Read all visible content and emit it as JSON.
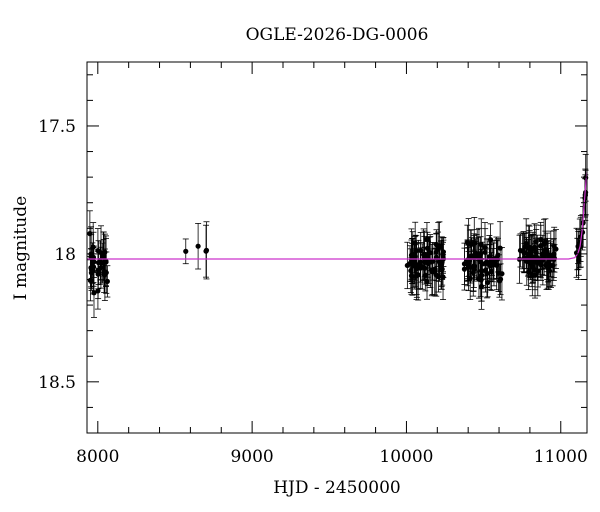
{
  "chart_data": {
    "type": "scatter",
    "title": "OGLE-2026-DG-0006",
    "xlabel": "HJD - 2450000",
    "ylabel": "I magnitude",
    "xlim": [
      7930,
      11170
    ],
    "ylim": [
      18.7,
      17.25
    ],
    "y_inverted": true,
    "x_ticks": [
      {
        "value": 8000,
        "label": "8000"
      },
      {
        "value": 9000,
        "label": "9000"
      },
      {
        "value": 10000,
        "label": "10000"
      },
      {
        "value": 11000,
        "label": "11000"
      }
    ],
    "y_ticks": [
      {
        "value": 17.5,
        "label": "17.5"
      },
      {
        "value": 18.0,
        "label": "18"
      },
      {
        "value": 18.5,
        "label": "18.5"
      }
    ],
    "x_minor_step": 200,
    "y_minor_step": 0.1,
    "grid": false,
    "legend": "none",
    "colors": {
      "points": "#000000",
      "model": "#cc33cc",
      "axes": "#000000"
    },
    "model": {
      "name": "",
      "points": [
        [
          7930,
          18.02
        ],
        [
          11050,
          18.02
        ],
        [
          11090,
          18.015
        ],
        [
          11110,
          18.0
        ],
        [
          11125,
          17.97
        ],
        [
          11140,
          17.9
        ],
        [
          11150,
          17.82
        ],
        [
          11158,
          17.76
        ],
        [
          11163,
          17.72
        ],
        [
          11170,
          17.68
        ]
      ]
    },
    "segments": [
      {
        "start": 7940,
        "end": 8065,
        "n": 34,
        "mag": 18.05,
        "scatter": 0.08,
        "err": 0.085,
        "seed": 11
      },
      {
        "start": 8570,
        "end": 8575,
        "n": 1,
        "mag": 17.99,
        "scatter": 0.0,
        "err": 0.05,
        "seed": 21
      },
      {
        "start": 8650,
        "end": 8650,
        "n": 1,
        "mag": 17.97,
        "scatter": 0.0,
        "err": 0.09,
        "seed": 22
      },
      {
        "start": 8700,
        "end": 8705,
        "n": 2,
        "mag": 17.99,
        "scatter": 0.01,
        "err": 0.09,
        "seed": 23
      },
      {
        "start": 10005,
        "end": 10240,
        "n": 70,
        "mag": 18.03,
        "scatter": 0.065,
        "err": 0.08,
        "seed": 31
      },
      {
        "start": 10370,
        "end": 10620,
        "n": 70,
        "mag": 18.03,
        "scatter": 0.065,
        "err": 0.08,
        "seed": 41
      },
      {
        "start": 10730,
        "end": 10970,
        "n": 70,
        "mag": 18.02,
        "scatter": 0.06,
        "err": 0.075,
        "seed": 51
      },
      {
        "start": 11100,
        "end": 11165,
        "n": 18,
        "mag": "model",
        "scatter": 0.04,
        "err": 0.08,
        "seed": 61
      }
    ]
  }
}
